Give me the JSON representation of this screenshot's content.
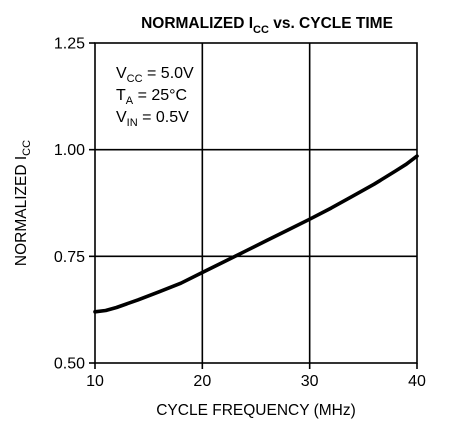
{
  "chart_data": {
    "type": "line",
    "title": {
      "prefix": "NORMALIZED I",
      "sub": "CC",
      "suffix": " vs. CYCLE TIME"
    },
    "xlabel": "CYCLE FREQUENCY (MHz)",
    "ylabel": {
      "main": "NORMALIZED I",
      "sub": "CC"
    },
    "xlim": [
      10,
      40
    ],
    "ylim": [
      0.5,
      1.25
    ],
    "xticks": [
      "10",
      "20",
      "30",
      "40"
    ],
    "yticks": [
      "0.50",
      "0.75",
      "1.00",
      "1.25"
    ],
    "xtick_values": [
      10,
      20,
      30,
      40
    ],
    "ytick_values": [
      0.5,
      0.75,
      1.0,
      1.25
    ],
    "grid": true,
    "conditions": [
      {
        "main": "V",
        "sub": "CC",
        "rest": " = 5.0V"
      },
      {
        "main": "T",
        "sub": "A",
        "rest": " = 25°C"
      },
      {
        "main": "V",
        "sub": "IN",
        "rest": " = 0.5V"
      }
    ],
    "series": [
      {
        "x": [
          10,
          11,
          12,
          14,
          16,
          18,
          20,
          22,
          24,
          26,
          28,
          30,
          32,
          34,
          36,
          38,
          39,
          40
        ],
        "y": [
          0.62,
          0.623,
          0.63,
          0.648,
          0.667,
          0.687,
          0.712,
          0.737,
          0.762,
          0.787,
          0.812,
          0.837,
          0.863,
          0.891,
          0.919,
          0.95,
          0.966,
          0.985
        ]
      }
    ]
  }
}
